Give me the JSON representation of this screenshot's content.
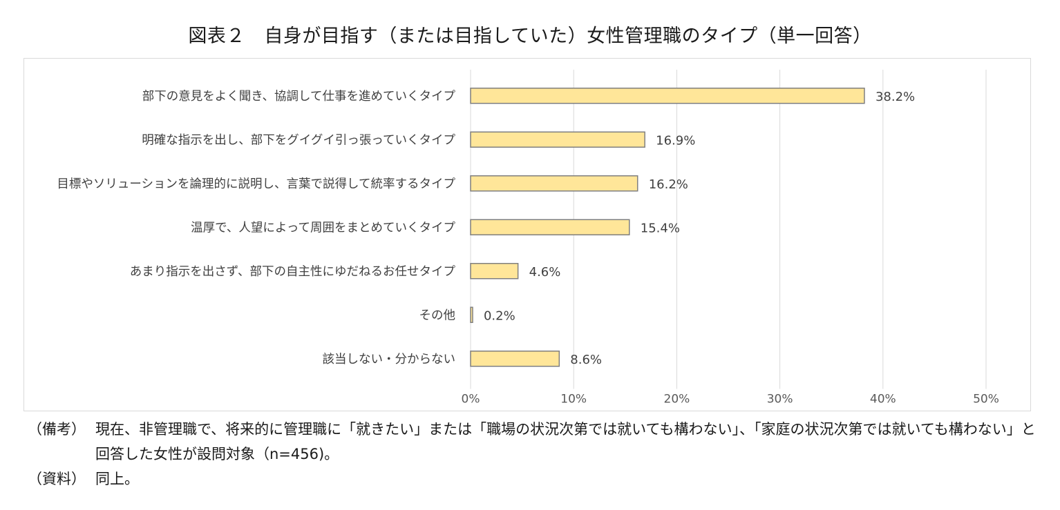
{
  "title": "図表２　自身が目指す（または目指していた）女性管理職のタイプ（単一回答）",
  "chart_data": {
    "type": "bar",
    "orientation": "horizontal",
    "categories": [
      "部下の意見をよく聞き、協調して仕事を進めていくタイプ",
      "明確な指示を出し、部下をグイグイ引っ張っていくタイプ",
      "目標やソリューションを論理的に説明し、言葉で説得して統率するタイプ",
      "温厚で、人望によって周囲をまとめていくタイプ",
      "あまり指示を出さず、部下の自主性にゆだねるお任せタイプ",
      "その他",
      "該当しない・分からない"
    ],
    "values": [
      38.2,
      16.9,
      16.2,
      15.4,
      4.6,
      0.2,
      8.6
    ],
    "value_labels": [
      "38.2%",
      "16.9%",
      "16.2%",
      "15.4%",
      "4.6%",
      "0.2%",
      "8.6%"
    ],
    "xlim": [
      0,
      50
    ],
    "xticks": [
      "0%",
      "10%",
      "20%",
      "30%",
      "40%",
      "50%"
    ],
    "grid": true,
    "bar_color": "#ffe699",
    "bar_border": "#7f7f7f"
  },
  "notes": [
    {
      "label": "（備考）",
      "text": "現在、非管理職で、将来的に管理職に「就きたい」または「職場の状況次第では就いても構わない」、「家庭の状況次第では就いても構わない」と回答した女性が設問対象（n=456)。"
    },
    {
      "label": "（資料）",
      "text": "同上。"
    }
  ]
}
